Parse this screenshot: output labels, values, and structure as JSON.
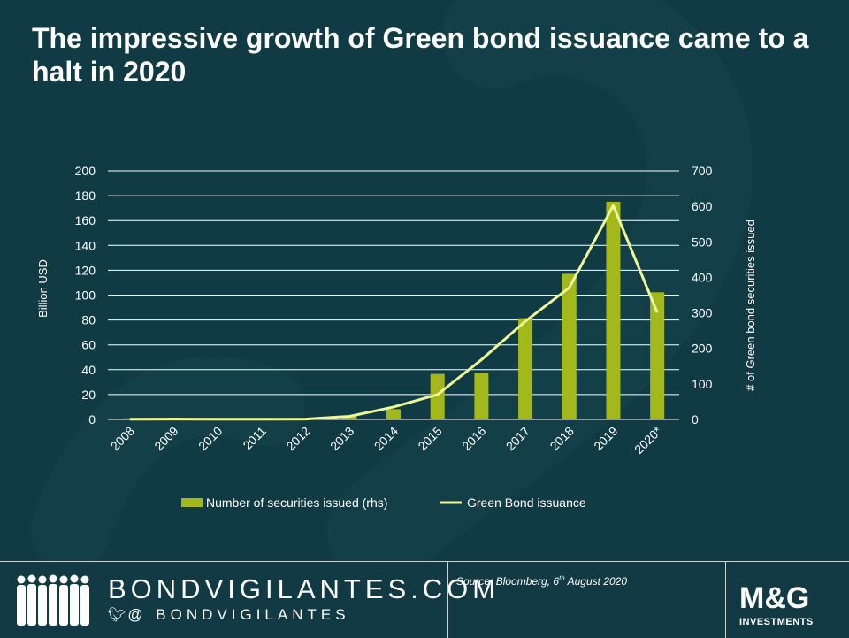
{
  "title": "The impressive growth of Green bond issuance came to a halt in 2020",
  "chart_data": {
    "type": "bar+line",
    "categories": [
      "2008",
      "2009",
      "2010",
      "2011",
      "2012",
      "2013",
      "2014",
      "2015",
      "2016",
      "2017",
      "2018",
      "2019",
      "2020*"
    ],
    "series": [
      {
        "name": "Number of securities issued (rhs)",
        "kind": "bar",
        "axis": "right",
        "values": [
          3,
          5,
          2,
          1,
          3,
          8,
          29,
          128,
          130,
          285,
          410,
          613,
          358
        ]
      },
      {
        "name": "Green Bond issuance",
        "kind": "line",
        "axis": "left",
        "values": [
          0.2,
          0.3,
          0.2,
          0.2,
          0.3,
          2.5,
          10,
          20,
          48,
          79,
          106,
          172,
          86
        ]
      }
    ],
    "ylabel": "Billion USD",
    "y2label": "# of Green bond securities issued",
    "ylim": [
      0,
      200
    ],
    "y2lim": [
      0,
      700
    ],
    "yticks": [
      0,
      20,
      40,
      60,
      80,
      100,
      120,
      140,
      160,
      180,
      200
    ],
    "y2ticks": [
      0,
      100,
      200,
      300,
      400,
      500,
      600,
      700
    ],
    "grid": true,
    "legend_position": "bottom",
    "colors": {
      "bar": "#a3b81a",
      "line": "#eef79a",
      "grid": "#ffffff",
      "axis_text": "#ffffff"
    }
  },
  "footer": {
    "brand": "BONDVIGILANTES.COM",
    "twitter_icon": "twitter-bird-icon",
    "handle": "@ BONDVIGILANTES",
    "source_prefix": "Source: Bloomberg, 6",
    "source_sup": "th",
    "source_suffix": " August 2020",
    "logo_text": "M&G",
    "logo_sub": "INVESTMENTS"
  },
  "colors": {
    "background": "#103a44",
    "footer": "#123a44",
    "divider": "#c9d3d6"
  }
}
